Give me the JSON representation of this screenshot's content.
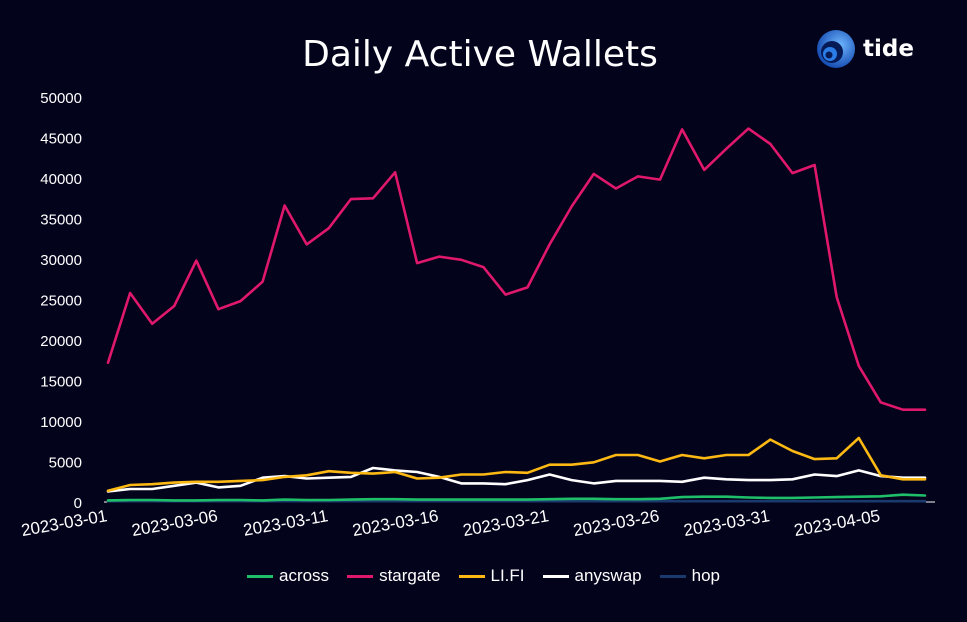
{
  "title": "Daily Active Wallets",
  "logo_text": "tide",
  "chart_data": {
    "type": "line",
    "title": "Daily Active Wallets",
    "xlabel": "",
    "ylabel": "",
    "ylim": [
      0,
      50000
    ],
    "y_ticks": [
      0,
      5000,
      10000,
      15000,
      20000,
      25000,
      30000,
      35000,
      40000,
      45000,
      50000
    ],
    "x_tick_labels": [
      "2023-03-01",
      "2023-03-06",
      "2023-03-11",
      "2023-03-16",
      "2023-03-21",
      "2023-03-26",
      "2023-03-31",
      "2023-04-05"
    ],
    "x": [
      "2023-03-01",
      "2023-03-02",
      "2023-03-03",
      "2023-03-04",
      "2023-03-05",
      "2023-03-06",
      "2023-03-07",
      "2023-03-08",
      "2023-03-09",
      "2023-03-10",
      "2023-03-11",
      "2023-03-12",
      "2023-03-13",
      "2023-03-14",
      "2023-03-15",
      "2023-03-16",
      "2023-03-17",
      "2023-03-18",
      "2023-03-19",
      "2023-03-20",
      "2023-03-21",
      "2023-03-22",
      "2023-03-23",
      "2023-03-24",
      "2023-03-25",
      "2023-03-26",
      "2023-03-27",
      "2023-03-28",
      "2023-03-29",
      "2023-03-30",
      "2023-03-31",
      "2023-04-01",
      "2023-04-02",
      "2023-04-03",
      "2023-04-04",
      "2023-04-05",
      "2023-04-06",
      "2023-04-07"
    ],
    "grid": false,
    "legend_position": "bottom",
    "series": [
      {
        "name": "across",
        "color": "#1fbf6a",
        "values": [
          200,
          250,
          250,
          200,
          200,
          250,
          250,
          200,
          300,
          250,
          250,
          300,
          350,
          350,
          300,
          300,
          300,
          300,
          300,
          300,
          350,
          400,
          400,
          350,
          350,
          400,
          600,
          650,
          650,
          550,
          500,
          500,
          550,
          600,
          650,
          700,
          900,
          800
        ]
      },
      {
        "name": "stargate",
        "color": "#e0186c",
        "values": [
          17200,
          25800,
          22000,
          24200,
          29800,
          23800,
          24800,
          27200,
          36600,
          31800,
          33800,
          37400,
          37500,
          40700,
          29500,
          30300,
          29900,
          29000,
          25600,
          26500,
          31800,
          36500,
          40500,
          38700,
          40200,
          39800,
          46000,
          41000,
          43600,
          46100,
          44200,
          40600,
          41600,
          25300,
          16800,
          12300,
          11400,
          11400
        ]
      },
      {
        "name": "LI.FI",
        "color": "#fdb913",
        "values": [
          1400,
          2100,
          2200,
          2400,
          2500,
          2500,
          2600,
          2700,
          3100,
          3300,
          3800,
          3600,
          3500,
          3700,
          2900,
          3000,
          3400,
          3400,
          3700,
          3600,
          4600,
          4600,
          4900,
          5800,
          5800,
          5000,
          5800,
          5400,
          5800,
          5800,
          7700,
          6300,
          5300,
          5400,
          7900,
          3300,
          2800,
          2800
        ]
      },
      {
        "name": "anyswap",
        "color": "#ffffff",
        "values": [
          1300,
          1600,
          1600,
          2000,
          2400,
          1800,
          2000,
          3000,
          3200,
          2900,
          3000,
          3100,
          4200,
          3900,
          3700,
          3100,
          2300,
          2300,
          2200,
          2700,
          3400,
          2700,
          2300,
          2600,
          2600,
          2600,
          2500,
          3000,
          2800,
          2700,
          2700,
          2800,
          3400,
          3200,
          3900,
          3200,
          3000,
          3000
        ]
      },
      {
        "name": "hop",
        "color": "#1a3a6e",
        "values": [
          100,
          100,
          100,
          100,
          100,
          100,
          100,
          100,
          100,
          100,
          100,
          100,
          100,
          100,
          100,
          100,
          100,
          100,
          100,
          100,
          100,
          100,
          100,
          100,
          100,
          100,
          100,
          100,
          100,
          100,
          100,
          100,
          100,
          100,
          100,
          100,
          100,
          100
        ]
      }
    ]
  }
}
